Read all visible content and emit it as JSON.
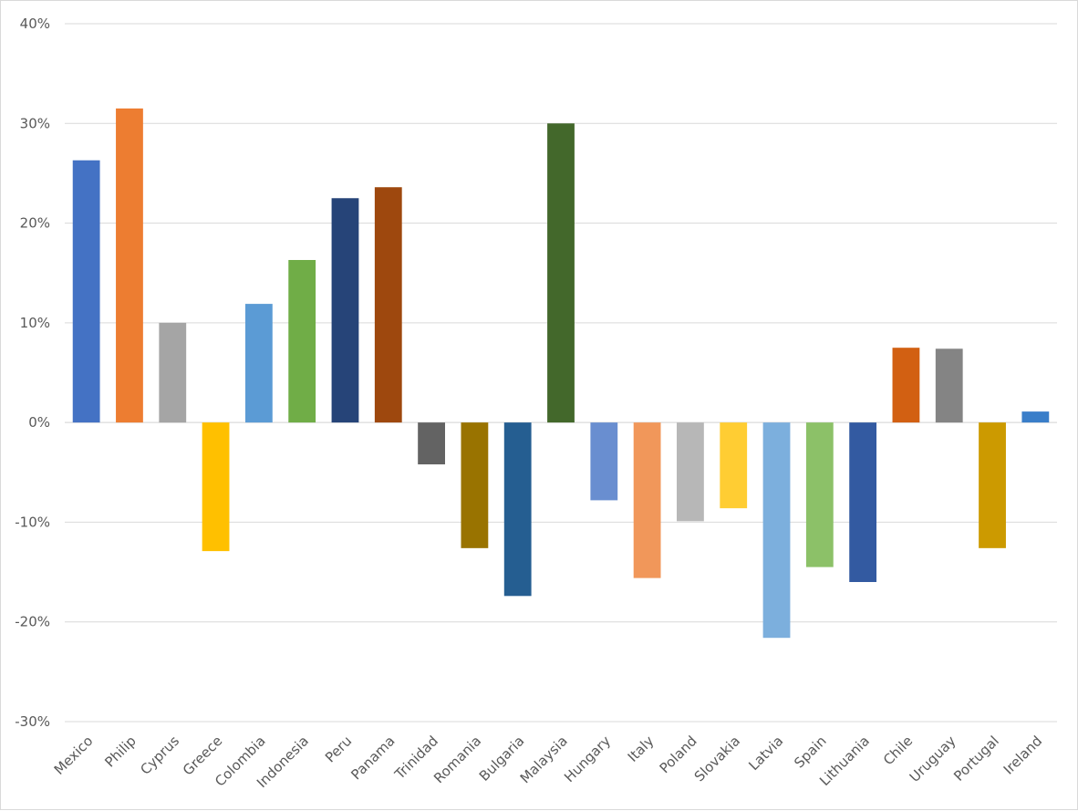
{
  "chart_data": {
    "type": "bar",
    "title": "",
    "xlabel": "",
    "ylabel": "",
    "ylim": [
      -30,
      40
    ],
    "y_ticks": [
      40,
      30,
      20,
      10,
      0,
      -10,
      -20,
      -30
    ],
    "y_tick_labels": [
      "40%",
      "30%",
      "20%",
      "10%",
      "0%",
      "-10%",
      "-20%",
      "-30%"
    ],
    "grid": true,
    "legend": "none",
    "categories": [
      "Mexico",
      "Philip",
      "Cyprus",
      "Greece",
      "Colombia",
      "Indonesia",
      "Peru",
      "Panama",
      "Trinidad",
      "Romania",
      "Bulgaria",
      "Malaysia",
      "Hungary",
      "Italy",
      "Poland",
      "Slovakia",
      "Latvia",
      "Spain",
      "Lithuania",
      "Chile",
      "Uruguay",
      "Portugal",
      "Ireland"
    ],
    "values": [
      26.3,
      31.5,
      10.0,
      -12.9,
      11.9,
      16.3,
      22.5,
      23.6,
      -4.2,
      -12.6,
      -17.4,
      30.0,
      -7.8,
      -15.6,
      -9.9,
      -8.6,
      -21.6,
      -14.5,
      -16.0,
      7.5,
      7.4,
      -12.6,
      1.1
    ],
    "colors": [
      "#4472c4",
      "#ed7d31",
      "#a5a5a5",
      "#ffc000",
      "#5b9bd5",
      "#70ad47",
      "#264478",
      "#9e480e",
      "#636363",
      "#997300",
      "#255e91",
      "#43682b",
      "#698ed0",
      "#f1975a",
      "#b7b7b7",
      "#ffcd33",
      "#7cafdd",
      "#8cc168",
      "#335aa1",
      "#d26012",
      "#848484",
      "#cc9a00",
      "#3a7ec9"
    ]
  }
}
